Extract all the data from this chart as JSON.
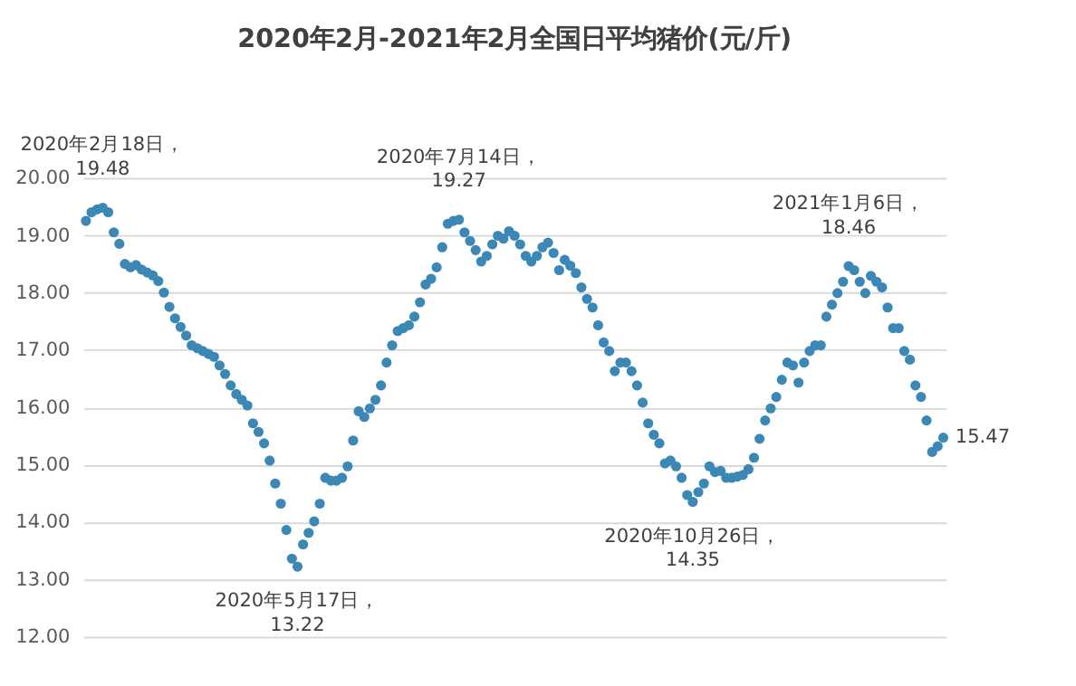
{
  "chart_data": {
    "type": "scatter",
    "title": "2020年2月-2021年2月全国日平均猪价(元/斤)",
    "categories": [
      null,
      null,
      null,
      null,
      null,
      null,
      null,
      null,
      null,
      null,
      null,
      null,
      null,
      null,
      null,
      null,
      null,
      null,
      null,
      null,
      null,
      null,
      null,
      null,
      null,
      null,
      null,
      null,
      null,
      null,
      null,
      null,
      null,
      null,
      null,
      null,
      null,
      null,
      null,
      null,
      null,
      null,
      null,
      null,
      null,
      null,
      null,
      null,
      null,
      null,
      null,
      null,
      null,
      null,
      null,
      null,
      null,
      null,
      null,
      null,
      null,
      null,
      null,
      null,
      null,
      null,
      null,
      null,
      null,
      null,
      null,
      null,
      null,
      null,
      null,
      null,
      null,
      null,
      null,
      null,
      null,
      null,
      null,
      null,
      null,
      null,
      null,
      null,
      null,
      null,
      null,
      null,
      null,
      null,
      null,
      null,
      null,
      null,
      null,
      null,
      null,
      null,
      null,
      null,
      null,
      null,
      null,
      null,
      null,
      null,
      null,
      null,
      null,
      null,
      null,
      null,
      null,
      null,
      null,
      null,
      null,
      null,
      null,
      null,
      null,
      null,
      null,
      null,
      null,
      null,
      null,
      null,
      null,
      null,
      null,
      null,
      null,
      null,
      null,
      null,
      null,
      null,
      null,
      null,
      null,
      null,
      null,
      null,
      null,
      null,
      null,
      null,
      null,
      null,
      null
    ],
    "series": [
      {
        "color": "#3b88b6",
        "values": [
          19.25,
          19.4,
          19.45,
          19.48,
          19.4,
          19.05,
          18.85,
          18.5,
          18.44,
          18.48,
          18.4,
          18.35,
          18.3,
          18.2,
          18.0,
          17.75,
          17.55,
          17.4,
          17.25,
          17.08,
          17.03,
          16.98,
          16.93,
          16.88,
          16.73,
          16.58,
          16.38,
          16.23,
          16.13,
          16.03,
          15.72,
          15.57,
          15.37,
          15.07,
          14.67,
          14.32,
          13.86,
          13.36,
          13.22,
          13.61,
          13.81,
          14.01,
          14.32,
          14.77,
          14.72,
          14.72,
          14.77,
          14.97,
          15.42,
          15.93,
          15.83,
          15.98,
          16.13,
          16.38,
          16.78,
          17.08,
          17.33,
          17.38,
          17.43,
          17.58,
          17.83,
          18.14,
          18.24,
          18.44,
          18.79,
          19.2,
          19.25,
          19.27,
          19.05,
          18.9,
          18.74,
          18.54,
          18.64,
          18.84,
          18.99,
          18.94,
          19.07,
          18.99,
          18.84,
          18.64,
          18.54,
          18.64,
          18.79,
          18.87,
          18.69,
          18.39,
          18.57,
          18.47,
          18.34,
          18.09,
          17.89,
          17.74,
          17.43,
          17.13,
          16.98,
          16.63,
          16.78,
          16.78,
          16.63,
          16.38,
          16.08,
          15.72,
          15.52,
          15.37,
          15.02,
          15.07,
          14.97,
          14.77,
          14.47,
          14.35,
          14.52,
          14.67,
          14.97,
          14.87,
          14.89,
          14.77,
          14.77,
          14.79,
          14.82,
          14.92,
          15.12,
          15.45,
          15.77,
          15.98,
          16.18,
          16.48,
          16.78,
          16.73,
          16.43,
          16.78,
          16.98,
          17.08,
          17.08,
          17.58,
          17.79,
          17.99,
          18.19,
          18.46,
          18.39,
          18.19,
          17.99,
          18.29,
          18.19,
          18.09,
          17.74,
          17.38,
          17.38,
          16.98,
          16.83,
          16.38,
          16.18,
          15.77,
          15.22,
          15.32,
          15.47
        ]
      }
    ],
    "ylim": [
      12,
      20
    ],
    "yticks": [
      {
        "value": 12,
        "label": "12.00"
      },
      {
        "value": 13,
        "label": "13.00"
      },
      {
        "value": 14,
        "label": "14.00"
      },
      {
        "value": 15,
        "label": "15.00"
      },
      {
        "value": 16,
        "label": "16.00"
      },
      {
        "value": 17,
        "label": "17.00"
      },
      {
        "value": 18,
        "label": "18.00"
      },
      {
        "value": 19,
        "label": "19.00"
      },
      {
        "value": 20,
        "label": "20.00"
      }
    ],
    "grid": "y",
    "marker": "circle",
    "legend": false,
    "annotations": [
      {
        "text": "2020年2月18日，\n19.48",
        "y": 19.48
      },
      {
        "text": "2020年5月17日，\n13.22",
        "y": 13.22
      },
      {
        "text": "2020年7月14日，\n19.27",
        "y": 19.27
      },
      {
        "text": "2020年10月26日，\n14.35",
        "y": 14.35
      },
      {
        "text": "2021年1月6日，\n18.46",
        "y": 18.46
      },
      "15.47"
    ]
  }
}
